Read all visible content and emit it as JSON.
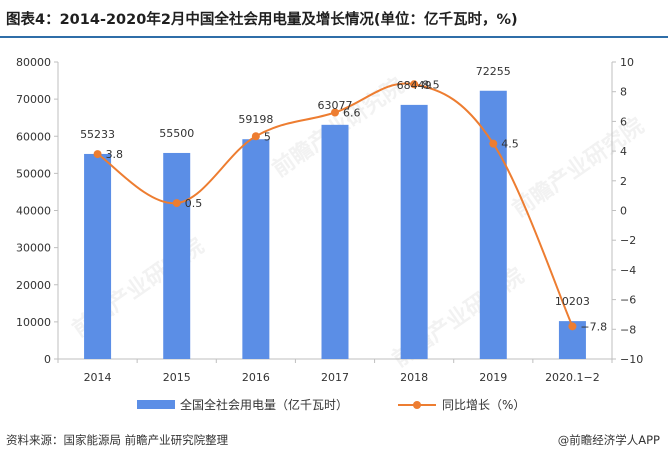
{
  "title": "图表4：2014-2020年2月中国全社会用电量及增长情况(单位：亿千瓦时，%)",
  "footer": {
    "source": "资料来源：国家能源局 前瞻产业研究院整理",
    "brand": "@前瞻经济学人APP"
  },
  "watermark": "前瞻产业研究院",
  "chart_data": {
    "type": "bar",
    "categories": [
      "2014",
      "2015",
      "2016",
      "2017",
      "2018",
      "2019",
      "2020.1−2"
    ],
    "series": [
      {
        "name": "全国全社会用电量（亿千瓦时）",
        "type": "bar",
        "axis": "left",
        "values": [
          55233,
          55500,
          59198,
          63077,
          68449,
          72255,
          10203
        ],
        "labels": [
          "55233",
          "55500",
          "59198",
          "63077",
          "68449",
          "72255",
          "10203"
        ],
        "color": "#5b8ee6"
      },
      {
        "name": "同比增长（%）",
        "type": "line",
        "axis": "right",
        "values": [
          3.8,
          0.5,
          5,
          6.6,
          8.5,
          4.5,
          -7.8
        ],
        "labels": [
          "3.8",
          "0.5",
          "5",
          "6.6",
          "8.5",
          "4.5",
          "−7.8"
        ],
        "color": "#ed7d31"
      }
    ],
    "yleft": {
      "min": 0,
      "max": 80000,
      "step": 10000,
      "ticks": [
        "0",
        "10000",
        "20000",
        "30000",
        "40000",
        "50000",
        "60000",
        "70000",
        "80000"
      ]
    },
    "yright": {
      "min": -10,
      "max": 10,
      "step": 2,
      "ticks": [
        "−10",
        "−8",
        "−6",
        "−4",
        "−2",
        "0",
        "2",
        "4",
        "6",
        "8",
        "10"
      ]
    },
    "legend_position": "bottom",
    "grid": false
  }
}
